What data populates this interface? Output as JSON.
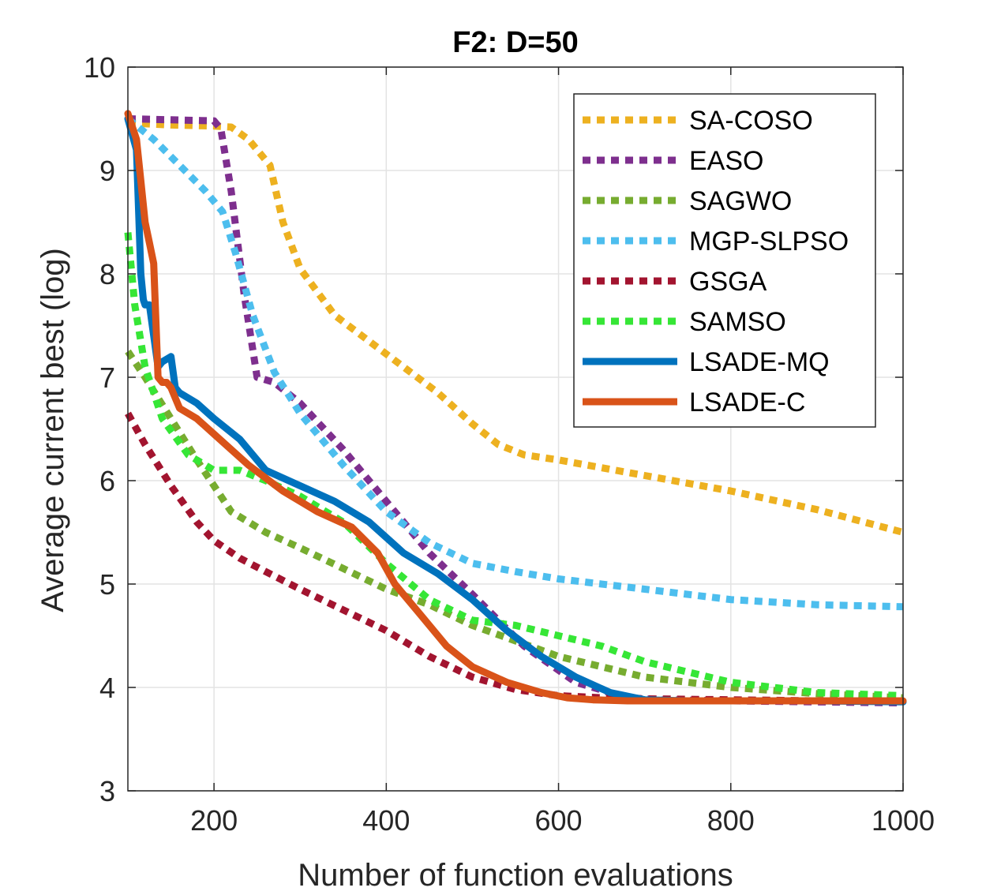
{
  "chart_data": {
    "type": "line",
    "title": "F2: D=50",
    "xlabel": "Number of function evaluations",
    "ylabel": "Average current best (log)",
    "xlim": [
      100,
      1000
    ],
    "ylim": [
      3,
      10
    ],
    "xticks": [
      200,
      400,
      600,
      800,
      1000
    ],
    "yticks": [
      3,
      4,
      5,
      6,
      7,
      8,
      9,
      10
    ],
    "xtick_labels": [
      "200",
      "400",
      "600",
      "800",
      "1000"
    ],
    "ytick_labels": [
      "3",
      "4",
      "5",
      "6",
      "7",
      "8",
      "9",
      "10"
    ],
    "grid": true,
    "legend_position": "top-right",
    "series": [
      {
        "name": "SA-COSO",
        "color": "#EDB120",
        "style": "dotted",
        "x": [
          100,
          150,
          200,
          220,
          240,
          265,
          280,
          300,
          340,
          380,
          420,
          460,
          500,
          530,
          560,
          600,
          700,
          800,
          900,
          1000
        ],
        "y": [
          9.46,
          9.44,
          9.43,
          9.42,
          9.3,
          9.05,
          8.5,
          8.05,
          7.6,
          7.35,
          7.1,
          6.85,
          6.55,
          6.35,
          6.25,
          6.2,
          6.05,
          5.9,
          5.72,
          5.5
        ]
      },
      {
        "name": "EASO",
        "color": "#7E2F8E",
        "style": "dotted",
        "x": [
          100,
          150,
          200,
          208,
          220,
          235,
          250,
          270,
          300,
          350,
          400,
          450,
          500,
          560,
          620,
          680,
          720,
          800,
          900,
          1000
        ],
        "y": [
          9.5,
          9.49,
          9.48,
          9.4,
          8.8,
          7.8,
          7.0,
          6.95,
          6.75,
          6.3,
          5.8,
          5.3,
          4.9,
          4.4,
          4.05,
          3.9,
          3.88,
          3.87,
          3.86,
          3.85
        ]
      },
      {
        "name": "SAGWO",
        "color": "#77AC30",
        "style": "dotted",
        "x": [
          100,
          120,
          150,
          180,
          200,
          220,
          260,
          300,
          350,
          400,
          450,
          500,
          550,
          600,
          700,
          800,
          900,
          1000
        ],
        "y": [
          7.25,
          7.0,
          6.6,
          6.2,
          5.95,
          5.7,
          5.5,
          5.35,
          5.15,
          4.95,
          4.8,
          4.6,
          4.45,
          4.3,
          4.1,
          4.0,
          3.94,
          3.9
        ]
      },
      {
        "name": "MGP-SLPSO",
        "color": "#4DBEEE",
        "style": "dotted",
        "x": [
          100,
          130,
          160,
          190,
          210,
          225,
          245,
          270,
          300,
          350,
          400,
          450,
          500,
          550,
          600,
          700,
          800,
          900,
          1000
        ],
        "y": [
          9.5,
          9.3,
          9.05,
          8.8,
          8.6,
          8.2,
          7.6,
          7.05,
          6.65,
          6.15,
          5.7,
          5.4,
          5.2,
          5.12,
          5.05,
          4.95,
          4.85,
          4.8,
          4.78
        ]
      },
      {
        "name": "GSGA",
        "color": "#A2142F",
        "style": "dotted",
        "x": [
          100,
          120,
          150,
          180,
          200,
          230,
          260,
          300,
          350,
          400,
          450,
          500,
          550,
          600,
          650,
          700,
          800,
          900,
          1000
        ],
        "y": [
          6.65,
          6.35,
          5.95,
          5.6,
          5.42,
          5.25,
          5.12,
          4.95,
          4.75,
          4.55,
          4.3,
          4.1,
          3.98,
          3.92,
          3.9,
          3.89,
          3.88,
          3.87,
          3.87
        ]
      },
      {
        "name": "SAMSO",
        "color": "#36E636",
        "style": "dotted",
        "x": [
          100,
          108,
          120,
          140,
          170,
          200,
          230,
          260,
          300,
          350,
          400,
          450,
          500,
          550,
          600,
          650,
          700,
          800,
          900,
          1000
        ],
        "y": [
          8.4,
          7.7,
          7.1,
          6.6,
          6.25,
          6.1,
          6.1,
          6.0,
          5.85,
          5.6,
          5.2,
          4.85,
          4.65,
          4.6,
          4.5,
          4.4,
          4.25,
          4.05,
          3.95,
          3.92
        ]
      },
      {
        "name": "LSADE-MQ",
        "color": "#0072BD",
        "style": "solid",
        "x": [
          100,
          110,
          115,
          118,
          120,
          125,
          135,
          140,
          150,
          155,
          160,
          180,
          200,
          230,
          260,
          300,
          340,
          380,
          420,
          460,
          500,
          540,
          580,
          620,
          660,
          700,
          750,
          800,
          900,
          1000
        ],
        "y": [
          9.5,
          9.2,
          8.0,
          7.75,
          7.7,
          7.7,
          7.1,
          7.15,
          7.2,
          6.9,
          6.85,
          6.75,
          6.6,
          6.4,
          6.1,
          5.95,
          5.8,
          5.6,
          5.3,
          5.1,
          4.85,
          4.55,
          4.3,
          4.1,
          3.95,
          3.88,
          3.87,
          3.87,
          3.87,
          3.86
        ]
      },
      {
        "name": "LSADE-C",
        "color": "#D95319",
        "style": "solid",
        "x": [
          100,
          110,
          115,
          120,
          125,
          130,
          135,
          140,
          145,
          150,
          155,
          160,
          180,
          200,
          240,
          280,
          320,
          360,
          390,
          410,
          440,
          470,
          500,
          540,
          580,
          610,
          640,
          680,
          720,
          800,
          900,
          1000
        ],
        "y": [
          9.55,
          9.3,
          8.9,
          8.5,
          8.3,
          8.1,
          7.0,
          6.95,
          6.95,
          6.9,
          6.8,
          6.7,
          6.6,
          6.45,
          6.15,
          5.9,
          5.7,
          5.55,
          5.3,
          5.0,
          4.7,
          4.4,
          4.2,
          4.05,
          3.95,
          3.9,
          3.88,
          3.87,
          3.87,
          3.87,
          3.87,
          3.87
        ]
      }
    ]
  }
}
